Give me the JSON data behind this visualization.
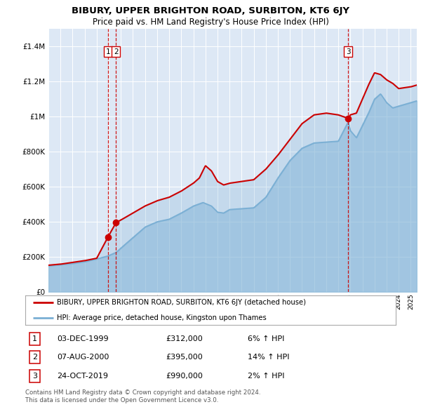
{
  "title": "BIBURY, UPPER BRIGHTON ROAD, SURBITON, KT6 6JY",
  "subtitle": "Price paid vs. HM Land Registry's House Price Index (HPI)",
  "legend_label_red": "BIBURY, UPPER BRIGHTON ROAD, SURBITON, KT6 6JY (detached house)",
  "legend_label_blue": "HPI: Average price, detached house, Kingston upon Thames",
  "transactions": [
    {
      "label": "1",
      "date": "03-DEC-1999",
      "price": "£312,000",
      "hpi_pct": "6% ↑ HPI",
      "year": 1999.92
    },
    {
      "label": "2",
      "date": "07-AUG-2000",
      "price": "£395,000",
      "hpi_pct": "14% ↑ HPI",
      "year": 2000.6
    },
    {
      "label": "3",
      "date": "24-OCT-2019",
      "price": "£990,000",
      "hpi_pct": "2% ↑ HPI",
      "year": 2019.81
    }
  ],
  "footer1": "Contains HM Land Registry data © Crown copyright and database right 2024.",
  "footer2": "This data is licensed under the Open Government Licence v3.0.",
  "ylim": [
    0,
    1500000
  ],
  "yticks": [
    0,
    200000,
    400000,
    600000,
    800000,
    1000000,
    1200000,
    1400000
  ],
  "red_color": "#cc0000",
  "blue_color": "#7aafd4",
  "vline_color": "#cc0000",
  "background_color": "#ffffff",
  "plot_bg_color": "#dde8f5",
  "hpi_keypoints": [
    [
      1995.0,
      148000
    ],
    [
      1996.0,
      155000
    ],
    [
      1997.0,
      162000
    ],
    [
      1998.0,
      172000
    ],
    [
      1999.0,
      188000
    ],
    [
      1999.92,
      205000
    ],
    [
      2000.6,
      225000
    ],
    [
      2001.0,
      250000
    ],
    [
      2002.0,
      310000
    ],
    [
      2003.0,
      370000
    ],
    [
      2004.0,
      400000
    ],
    [
      2005.0,
      415000
    ],
    [
      2006.0,
      450000
    ],
    [
      2007.0,
      490000
    ],
    [
      2007.8,
      510000
    ],
    [
      2008.5,
      490000
    ],
    [
      2009.0,
      455000
    ],
    [
      2009.5,
      450000
    ],
    [
      2010.0,
      470000
    ],
    [
      2011.0,
      475000
    ],
    [
      2012.0,
      480000
    ],
    [
      2013.0,
      540000
    ],
    [
      2014.0,
      650000
    ],
    [
      2015.0,
      750000
    ],
    [
      2016.0,
      820000
    ],
    [
      2017.0,
      850000
    ],
    [
      2018.0,
      855000
    ],
    [
      2019.0,
      860000
    ],
    [
      2019.81,
      970000
    ],
    [
      2020.0,
      920000
    ],
    [
      2020.5,
      880000
    ],
    [
      2021.0,
      950000
    ],
    [
      2021.5,
      1020000
    ],
    [
      2022.0,
      1100000
    ],
    [
      2022.5,
      1130000
    ],
    [
      2023.0,
      1080000
    ],
    [
      2023.5,
      1050000
    ],
    [
      2024.0,
      1060000
    ],
    [
      2025.0,
      1080000
    ],
    [
      2025.5,
      1090000
    ]
  ],
  "prop_keypoints": [
    [
      1995.0,
      152000
    ],
    [
      1996.0,
      158000
    ],
    [
      1997.0,
      168000
    ],
    [
      1998.0,
      178000
    ],
    [
      1999.0,
      192000
    ],
    [
      1999.92,
      312000
    ],
    [
      2000.6,
      395000
    ],
    [
      2001.0,
      410000
    ],
    [
      2002.0,
      450000
    ],
    [
      2003.0,
      490000
    ],
    [
      2004.0,
      520000
    ],
    [
      2005.0,
      540000
    ],
    [
      2006.0,
      575000
    ],
    [
      2007.0,
      620000
    ],
    [
      2007.5,
      650000
    ],
    [
      2008.0,
      720000
    ],
    [
      2008.5,
      690000
    ],
    [
      2009.0,
      630000
    ],
    [
      2009.5,
      610000
    ],
    [
      2010.0,
      620000
    ],
    [
      2011.0,
      630000
    ],
    [
      2012.0,
      640000
    ],
    [
      2013.0,
      700000
    ],
    [
      2014.0,
      780000
    ],
    [
      2015.0,
      870000
    ],
    [
      2016.0,
      960000
    ],
    [
      2017.0,
      1010000
    ],
    [
      2018.0,
      1020000
    ],
    [
      2019.0,
      1010000
    ],
    [
      2019.81,
      990000
    ],
    [
      2020.0,
      1010000
    ],
    [
      2020.5,
      1020000
    ],
    [
      2021.0,
      1100000
    ],
    [
      2021.5,
      1180000
    ],
    [
      2022.0,
      1250000
    ],
    [
      2022.5,
      1240000
    ],
    [
      2023.0,
      1210000
    ],
    [
      2023.5,
      1190000
    ],
    [
      2024.0,
      1160000
    ],
    [
      2025.0,
      1170000
    ],
    [
      2025.5,
      1180000
    ]
  ]
}
